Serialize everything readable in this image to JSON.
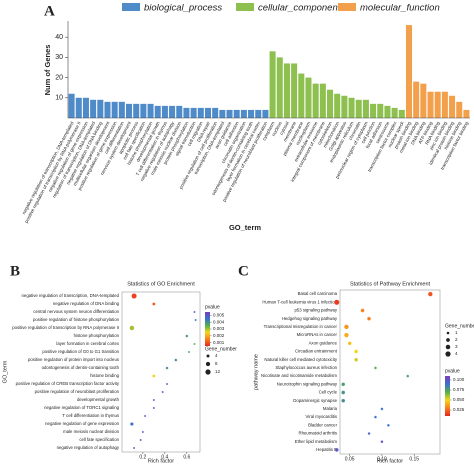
{
  "chart_data": [
    {
      "type": "bar",
      "panel_label": "A",
      "xlabel": "GO_term",
      "ylabel": "Num of Genes",
      "categories": [
        "negative regulation of transcription, DNA-templated",
        "positive regulation of transcription by RNA polymerase II",
        "negative regulation of gene expression",
        "regulation of transcription, DNA-templated",
        "negative regulation of DNA binding",
        "multicellular organism development",
        "positive regulation of gene expression",
        "cell differentiation",
        "nervous system development",
        "apoptotic process",
        "cell fate specification",
        "histone phosphorylation",
        "developmental growth",
        "T cell differentiation in thymus",
        "negative regulation of autophagy",
        "male meiosis nuclear division",
        "protein phosphorylation",
        "signal transduction",
        "cell migration",
        "DNA repair",
        "positive regulation of cell proliferation",
        "transcription, DNA-templated",
        "axon guidance",
        "cell adhesion",
        "chromatin organization",
        "odontogenesis of dentin-containing tooth",
        "layer formation in cerebral cortex",
        "positive regulation of neuroblast proliferation",
        "cytoplasm",
        "nucleus",
        "cytosol",
        "membrane",
        "plasma membrane",
        "nucleoplasm",
        "extracellular exosome",
        "integral component of membrane",
        "cytoskeleton",
        "mitochondrion",
        "Golgi apparatus",
        "endoplasmic reticulum",
        "chromatin",
        "perinuclear region of cytoplasm",
        "cell junction",
        "focal adhesion",
        "centrosome",
        "transcription factor complex",
        "nuclear speck",
        "protein binding",
        "metal ion binding",
        "DNA binding",
        "ATP binding",
        "RNA binding",
        "zinc ion binding",
        "identical protein binding",
        "histone binding",
        "transcription factor binding"
      ],
      "series": [
        {
          "name": "biological_process",
          "color": "#4f8bc9",
          "values": [
            12,
            10,
            10,
            9,
            9,
            8,
            8,
            8,
            7,
            7,
            7,
            7,
            6,
            6,
            6,
            6,
            5,
            5,
            5,
            5,
            5,
            4,
            4,
            4,
            4,
            4,
            4,
            4,
            null,
            null,
            null,
            null,
            null,
            null,
            null,
            null,
            null,
            null,
            null,
            null,
            null,
            null,
            null,
            null,
            null,
            null,
            null,
            null,
            null,
            null,
            null,
            null,
            null,
            null,
            null,
            null
          ]
        },
        {
          "name": "cellular_component",
          "color": "#8dc04f",
          "values": [
            null,
            null,
            null,
            null,
            null,
            null,
            null,
            null,
            null,
            null,
            null,
            null,
            null,
            null,
            null,
            null,
            null,
            null,
            null,
            null,
            null,
            null,
            null,
            null,
            null,
            null,
            null,
            null,
            33,
            30,
            27,
            27,
            22,
            20,
            17,
            17,
            14,
            12,
            11,
            10,
            9,
            9,
            7,
            7,
            6,
            5,
            4,
            null,
            null,
            null,
            null,
            null,
            null,
            null,
            null,
            null
          ]
        },
        {
          "name": "molecular_function",
          "color": "#f3a04c",
          "values": [
            null,
            null,
            null,
            null,
            null,
            null,
            null,
            null,
            null,
            null,
            null,
            null,
            null,
            null,
            null,
            null,
            null,
            null,
            null,
            null,
            null,
            null,
            null,
            null,
            null,
            null,
            null,
            null,
            null,
            null,
            null,
            null,
            null,
            null,
            null,
            null,
            null,
            null,
            null,
            null,
            null,
            null,
            null,
            null,
            null,
            null,
            null,
            46,
            18,
            17,
            13,
            13,
            13,
            11,
            8,
            4
          ]
        }
      ],
      "ylim": [
        0,
        48
      ],
      "yticks": [
        10,
        20,
        30,
        40
      ]
    },
    {
      "type": "dot",
      "panel_label": "B",
      "title": "Statistics of GO Enrichment",
      "xlabel": "Rich factor",
      "ylabel": "GO_term",
      "categories": [
        "negative regulation of transcription, DNA-templated",
        "negative regulation of DNA binding",
        "central nervous system neuron differentiation",
        "positive regulation of histone phosphorylation",
        "positive regulation of transcription by RNA polymerase II",
        "histone phosphorylation",
        "layer formation in cerebral cortex",
        "positive regulation of G0 to G1 transition",
        "positive regulation of protein import into nucleus",
        "odontogenesis of dentin-containing tooth",
        "histone binding",
        "positive regulation of CREB transcription factor activity",
        "positive regulation of neuroblast proliferation",
        "developmental growth",
        "negative regulation of TORC1 signaling",
        "T cell differentiation in thymus",
        "negative regulation of gene expression",
        "male meiosis nuclear division",
        "cell fate specification",
        "negative regulation of autophagy"
      ],
      "values": [
        0.12,
        0.3,
        0.67,
        0.68,
        0.1,
        0.6,
        0.67,
        0.62,
        0.5,
        0.42,
        0.3,
        0.42,
        0.38,
        0.3,
        0.3,
        0.22,
        0.1,
        0.2,
        0.18,
        0.12
      ],
      "pvalues": [
        0.0008,
        0.001,
        0.0048,
        0.0045,
        0.003,
        0.004,
        0.0035,
        0.0038,
        0.0042,
        0.004,
        0.0025,
        0.0048,
        0.005,
        0.005,
        0.005,
        0.005,
        0.0045,
        0.005,
        0.0052,
        0.0052
      ],
      "sizes": [
        12,
        4,
        2,
        2,
        10,
        3,
        2,
        2,
        3,
        3,
        4,
        2,
        2,
        2,
        2,
        2,
        5,
        2,
        2,
        2
      ],
      "xlim": [
        0.01,
        0.72
      ],
      "xticks": [
        0.2,
        0.4,
        0.6
      ],
      "color_title": "pvalue",
      "clim": [
        0.0005,
        0.0055
      ],
      "cticks": [
        0.005,
        0.004,
        0.003,
        0.002,
        0.001
      ],
      "colormap": [
        "#e8231f",
        "#f77f1b",
        "#f5d617",
        "#52b04a",
        "#3a6fd0",
        "#7b3fb8"
      ],
      "size_title": "Gene_number",
      "size_ticks": [
        4,
        8,
        12
      ]
    },
    {
      "type": "dot",
      "panel_label": "C",
      "title": "Statistics of Pathway Enrichment",
      "xlabel": "Rich factor",
      "ylabel": "pathway name",
      "categories": [
        "Basal cell carcinoma",
        "Human T-cell leukemia virus 1 infection",
        "p53 signaling pathway",
        "Hedgehog signaling pathway",
        "Transcriptional misregulation in cancer",
        "MicroRNAs in cancer",
        "Axon guidance",
        "Circadian entrainment",
        "Natural killer cell mediated cytotoxicity",
        "Staphylococcus aureus infection",
        "Nicotinate and nicotinamide metabolism",
        "Neurotrophin signaling pathway",
        "Cell cycle",
        "Dopaminergic synapse",
        "Malaria",
        "Viral myocarditis",
        "Bladder cancer",
        "Rheumatoid arthritis",
        "Ether lipid metabolism",
        "Hepatitis B"
      ],
      "values": [
        0.175,
        0.03,
        0.07,
        0.08,
        0.045,
        0.045,
        0.05,
        0.06,
        0.06,
        0.09,
        0.14,
        0.04,
        0.04,
        0.04,
        0.1,
        0.09,
        0.11,
        0.08,
        0.1,
        0.03
      ],
      "pvalues": [
        0.02,
        0.015,
        0.03,
        0.03,
        0.035,
        0.04,
        0.045,
        0.05,
        0.055,
        0.07,
        0.075,
        0.075,
        0.08,
        0.08,
        0.09,
        0.09,
        0.09,
        0.095,
        0.1,
        0.1
      ],
      "sizes": [
        3,
        4,
        2,
        2,
        3,
        3,
        2,
        2,
        2,
        1,
        1,
        2,
        2,
        2,
        1,
        1,
        1,
        1,
        1,
        2
      ],
      "xlim": [
        0.035,
        0.19
      ],
      "xticks": [
        0.05,
        {
          "value": 0.1,
          "label": "0.10"
        },
        0.15
      ],
      "color_title": "pvalue",
      "clim": [
        0.01,
        0.11
      ],
      "cticks": [
        {
          "value": 0.1,
          "label": "0.100"
        },
        0.075,
        {
          "value": 0.05,
          "label": "0.050"
        },
        0.025
      ],
      "colormap": [
        "#e8231f",
        "#f77f1b",
        "#f5d617",
        "#52b04a",
        "#3a6fd0",
        "#7b3fb8"
      ],
      "size_title": "Gene_number",
      "size_ticks": [
        1,
        2,
        3,
        4
      ]
    }
  ]
}
